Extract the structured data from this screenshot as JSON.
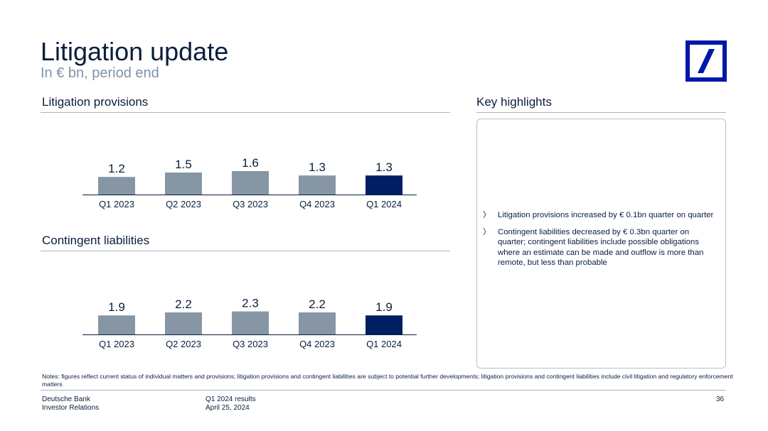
{
  "header": {
    "title": "Litigation update",
    "subtitle": "In € bn, period end"
  },
  "logo": {
    "icon": "deutsche-bank-logo-icon",
    "color": "#0018a8"
  },
  "colors": {
    "grey_bar": "#8796a5",
    "highlight_bar": "#001e62",
    "axis": "#0a1e3c"
  },
  "sections": {
    "provisions_title": "Litigation provisions",
    "contingent_title": "Contingent liabilities",
    "highlights_title": "Key highlights"
  },
  "chart_data": [
    {
      "type": "bar",
      "title": "Litigation provisions",
      "categories": [
        "Q1 2023",
        "Q2 2023",
        "Q3 2023",
        "Q4 2023",
        "Q1 2024"
      ],
      "values": [
        1.2,
        1.5,
        1.6,
        1.3,
        1.3
      ],
      "labels": [
        "1.2",
        "1.5",
        "1.6",
        "1.3",
        "1.3"
      ],
      "highlight_index": 4,
      "unit": "€ bn",
      "ylim": [
        0,
        3.0
      ],
      "xlabel": "",
      "ylabel": ""
    },
    {
      "type": "bar",
      "title": "Contingent liabilities",
      "categories": [
        "Q1 2023",
        "Q2 2023",
        "Q3 2023",
        "Q4 2023",
        "Q1 2024"
      ],
      "values": [
        1.9,
        2.2,
        2.3,
        2.2,
        1.9
      ],
      "labels": [
        "1.9",
        "2.2",
        "2.3",
        "2.2",
        "1.9"
      ],
      "highlight_index": 4,
      "unit": "€ bn",
      "ylim": [
        0,
        4.4
      ],
      "xlabel": "",
      "ylabel": ""
    }
  ],
  "highlights": {
    "bullet": "〉",
    "items": [
      "Litigation provisions increased by € 0.1bn quarter on quarter",
      "Contingent liabilities decreased by € 0.3bn quarter on quarter; contingent liabilities include possible obligations where an estimate can be made and outflow is more than remote, but less than probable"
    ]
  },
  "notes": {
    "label": "Notes:",
    "text": "figures reflect current status of individual matters and provisions; litigation provisions and contingent liabilities are subject to potential further developments; litigation provisions and contingent liabilities include civil litigation and regulatory enforcement matters"
  },
  "footer": {
    "company": "Deutsche Bank",
    "department": "Investor Relations",
    "report": "Q1 2024 results",
    "date": "April 25, 2024",
    "page_number": "36"
  }
}
